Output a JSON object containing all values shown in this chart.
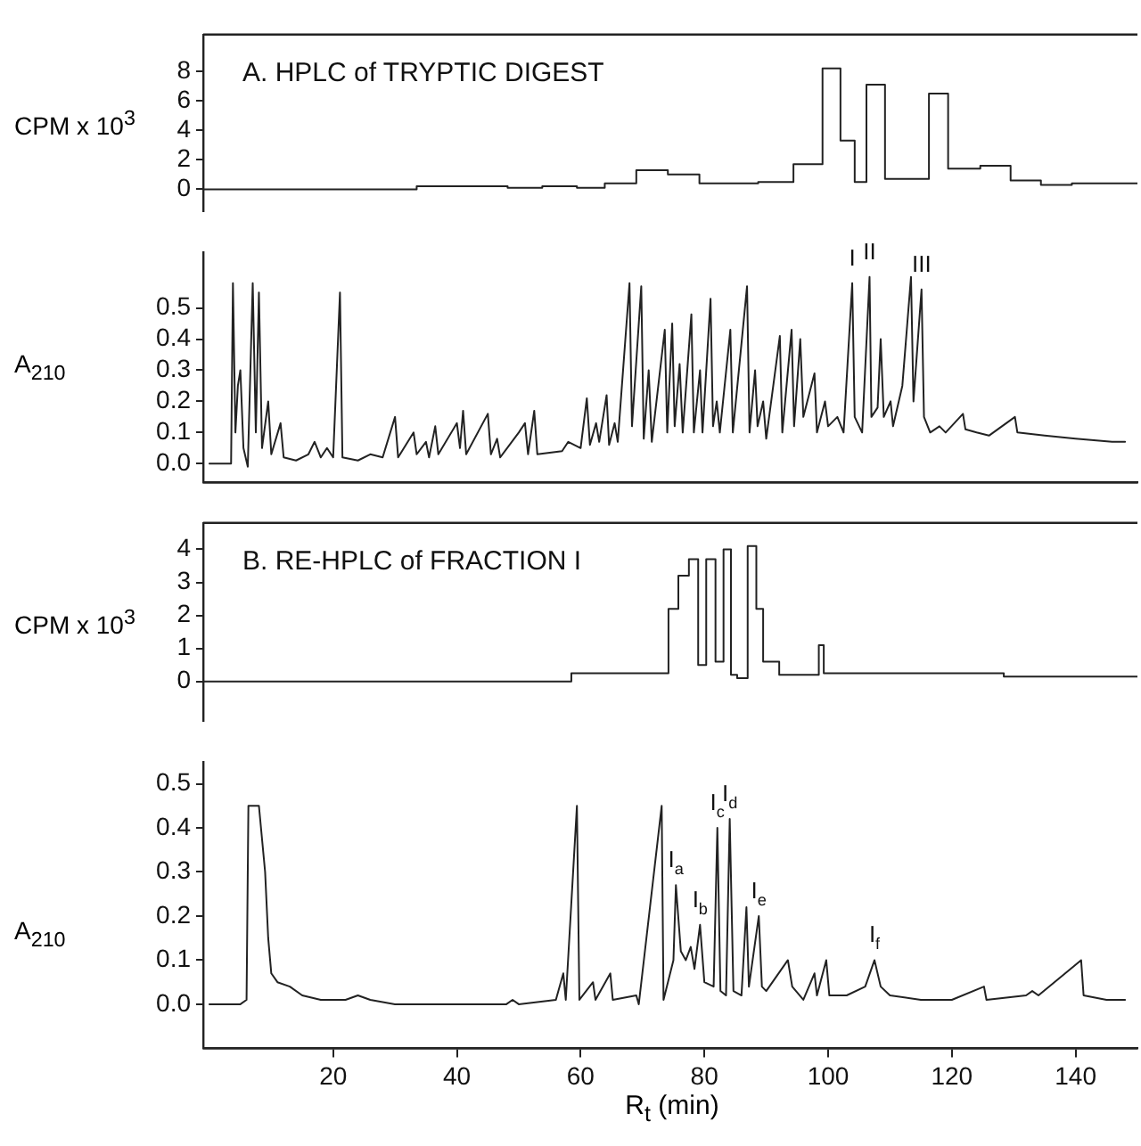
{
  "chart_data": [
    {
      "type": "step",
      "title": "A. HPLC of TRYPTIC DIGEST",
      "ylabel": "CPM x 10$^{3}$",
      "color": "#222222",
      "xlim": [
        -1,
        150
      ],
      "ylim": [
        -1.5,
        10.5
      ],
      "yticks": [
        0,
        2,
        4,
        6,
        8
      ],
      "tick_labels": "y",
      "x": [
        -1,
        33.5,
        48.2,
        53.8,
        59.4,
        63.9,
        69.0,
        74.1,
        79.2,
        88.7,
        94.4,
        99.1,
        102.0,
        104.3,
        106.2,
        109.2,
        116.3,
        119.4,
        124.6,
        129.5,
        134.4,
        139.4,
        150
      ],
      "values": [
        0.0,
        0.2,
        0.1,
        0.2,
        0.1,
        0.4,
        1.3,
        1.0,
        0.4,
        0.5,
        1.7,
        8.2,
        3.3,
        0.5,
        7.1,
        0.7,
        6.5,
        1.4,
        1.6,
        0.6,
        0.3,
        0.4,
        0.4
      ]
    },
    {
      "type": "line",
      "ylabel": "A$_{210}$",
      "color": "#222222",
      "xlim": [
        -1,
        150
      ],
      "ylim": [
        -0.06,
        0.68
      ],
      "yticks": [
        {
          "value": 0,
          "label": "0.0"
        },
        0.1,
        0.2,
        0.3,
        0.4,
        0.5
      ],
      "tick_labels": "y",
      "annotations": [
        {
          "text": "I",
          "x": 103.9,
          "y": 0.58
        },
        {
          "text": "II",
          "x": 106.7,
          "y": 0.6
        },
        {
          "text": "III",
          "x": 115.1,
          "y": 0.56
        }
      ],
      "x": [
        0,
        3.5,
        3.8,
        4.2,
        4.6,
        5.0,
        5.5,
        6.2,
        7.0,
        7.5,
        8.0,
        8.5,
        9.5,
        10.0,
        11.5,
        12,
        14,
        16,
        17,
        18,
        19,
        20,
        21.1,
        21.5,
        24,
        26,
        28,
        30,
        30.5,
        33,
        33.5,
        35,
        35.5,
        36.5,
        37,
        40,
        40.5,
        41,
        41.5,
        45,
        45.5,
        46.5,
        47,
        50,
        51,
        51.5,
        52.5,
        53,
        57,
        58,
        60,
        61,
        61.5,
        62.5,
        63,
        64.2,
        64.6,
        65.5,
        66,
        67.9,
        68.3,
        69.8,
        70.2,
        71,
        71.5,
        73.6,
        74,
        74.8,
        75.2,
        76,
        76.5,
        77.9,
        78.3,
        79.3,
        79.7,
        81,
        81.4,
        82,
        82.5,
        84.2,
        84.6,
        86.9,
        87.3,
        88.2,
        88.6,
        89.5,
        90,
        92.2,
        92.6,
        94.1,
        94.5,
        95.5,
        96,
        97.8,
        98.2,
        99.5,
        100,
        101.5,
        102.5,
        103.9,
        104.3,
        105.5,
        106.7,
        107,
        108,
        108.5,
        109,
        110.1,
        110.5,
        112,
        113.4,
        113.8,
        115.1,
        115.5,
        116.5,
        118,
        119,
        121.8,
        122.2,
        124,
        126,
        130.2,
        130.6,
        135,
        140,
        145.9,
        148
      ],
      "values": [
        0.0,
        0.0,
        0.58,
        0.1,
        0.25,
        0.3,
        0.05,
        -0.01,
        0.58,
        0.1,
        0.55,
        0.05,
        0.2,
        0.03,
        0.13,
        0.02,
        0.01,
        0.03,
        0.07,
        0.02,
        0.05,
        0.02,
        0.55,
        0.02,
        0.01,
        0.03,
        0.02,
        0.15,
        0.02,
        0.1,
        0.03,
        0.07,
        0.02,
        0.12,
        0.03,
        0.13,
        0.05,
        0.17,
        0.03,
        0.16,
        0.03,
        0.08,
        0.02,
        0.1,
        0.13,
        0.03,
        0.17,
        0.03,
        0.04,
        0.07,
        0.05,
        0.21,
        0.06,
        0.13,
        0.07,
        0.22,
        0.06,
        0.13,
        0.07,
        0.58,
        0.12,
        0.57,
        0.08,
        0.3,
        0.07,
        0.43,
        0.1,
        0.45,
        0.12,
        0.32,
        0.1,
        0.48,
        0.1,
        0.3,
        0.1,
        0.53,
        0.12,
        0.2,
        0.1,
        0.43,
        0.1,
        0.57,
        0.1,
        0.3,
        0.12,
        0.2,
        0.08,
        0.41,
        0.1,
        0.43,
        0.12,
        0.4,
        0.15,
        0.29,
        0.1,
        0.2,
        0.12,
        0.15,
        0.1,
        0.58,
        0.15,
        0.1,
        0.6,
        0.15,
        0.18,
        0.4,
        0.15,
        0.2,
        0.12,
        0.25,
        0.6,
        0.2,
        0.56,
        0.15,
        0.1,
        0.12,
        0.1,
        0.16,
        0.11,
        0.1,
        0.09,
        0.15,
        0.1,
        0.09,
        0.08,
        0.07,
        0.07
      ]
    },
    {
      "type": "step",
      "title": "B. RE-HPLC of FRACTION I",
      "ylabel": "CPM x 10$^{3}$",
      "color": "#222222",
      "xlim": [
        -1,
        150
      ],
      "ylim": [
        -1.2,
        4.8
      ],
      "yticks": [
        0,
        1,
        2,
        3,
        4
      ],
      "tick_labels": "y",
      "x": [
        -1,
        58.5,
        74.2,
        75.8,
        77.5,
        79.0,
        80.3,
        81.8,
        83.1,
        84.3,
        85.3,
        87.0,
        88.4,
        89.5,
        92.1,
        98.5,
        99.3,
        128.4,
        150
      ],
      "values": [
        0.0,
        0.25,
        2.2,
        3.2,
        3.7,
        0.5,
        3.7,
        0.6,
        4.0,
        0.2,
        0.1,
        4.1,
        2.2,
        0.6,
        0.2,
        1.1,
        0.25,
        0.15,
        0.15
      ]
    },
    {
      "type": "line",
      "ylabel": "A$_{210}$",
      "xlabel": "R$_{t}$ (min)",
      "color": "#222222",
      "xlim": [
        -1,
        150
      ],
      "ylim": [
        -0.1,
        0.55
      ],
      "yticks": [
        {
          "value": 0,
          "label": "0.0"
        },
        0.1,
        0.2,
        0.3,
        0.4,
        0.5
      ],
      "xticks": [
        20,
        40,
        60,
        80,
        100,
        120,
        140
      ],
      "annotations": [
        {
          "text": "I$_{a}$",
          "x": 75.4,
          "y": 0.27
        },
        {
          "text": "I$_{b}$",
          "x": 79.3,
          "y": 0.18
        },
        {
          "text": "I$_{c}$",
          "x": 82.1,
          "y": 0.4
        },
        {
          "text": "I$_{d}$",
          "x": 84.1,
          "y": 0.42
        },
        {
          "text": "I$_{e}$",
          "x": 88.8,
          "y": 0.2
        },
        {
          "text": "I$_{f}$",
          "x": 107.5,
          "y": 0.1
        }
      ],
      "x": [
        0,
        5,
        6,
        6.3,
        8.0,
        9.0,
        9.5,
        10,
        11,
        13,
        15,
        18,
        22,
        24,
        26,
        30,
        40,
        48,
        49,
        50,
        56,
        57.2,
        57.6,
        59.4,
        59.8,
        62.0,
        62.4,
        64.8,
        65.2,
        69,
        69.4,
        73.1,
        73.4,
        75,
        75.4,
        76.2,
        77,
        77.8,
        78.4,
        79.3,
        80,
        81.5,
        82.1,
        82.6,
        83.5,
        84.1,
        84.7,
        86,
        86.8,
        87.2,
        88.8,
        89.3,
        90,
        93.5,
        94.2,
        96,
        97.8,
        98.2,
        99.7,
        100.2,
        103,
        106,
        107.5,
        108.5,
        110,
        115,
        120,
        125.2,
        125.6,
        132,
        133,
        134,
        140.9,
        141.3,
        145,
        148
      ],
      "values": [
        0.0,
        0.0,
        0.01,
        0.45,
        0.45,
        0.3,
        0.15,
        0.07,
        0.05,
        0.04,
        0.02,
        0.01,
        0.01,
        0.02,
        0.01,
        0.0,
        0.0,
        0.0,
        0.01,
        0.0,
        0.01,
        0.07,
        0.01,
        0.45,
        0.01,
        0.05,
        0.01,
        0.07,
        0.01,
        0.02,
        0.0,
        0.45,
        0.01,
        0.1,
        0.27,
        0.12,
        0.1,
        0.13,
        0.08,
        0.18,
        0.05,
        0.04,
        0.4,
        0.03,
        0.02,
        0.42,
        0.03,
        0.02,
        0.22,
        0.04,
        0.2,
        0.04,
        0.03,
        0.1,
        0.04,
        0.01,
        0.07,
        0.02,
        0.1,
        0.02,
        0.02,
        0.04,
        0.1,
        0.04,
        0.02,
        0.01,
        0.01,
        0.04,
        0.01,
        0.02,
        0.03,
        0.02,
        0.1,
        0.02,
        0.01,
        0.01
      ]
    }
  ]
}
